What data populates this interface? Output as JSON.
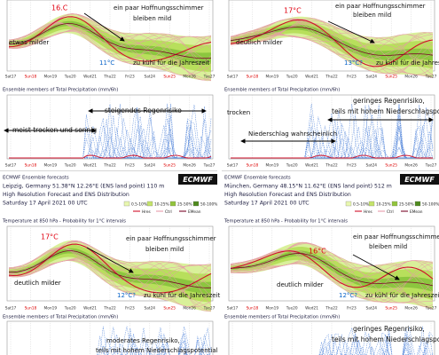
{
  "x_days": [
    "Sat17",
    "Sun18",
    "Mon19",
    "Tue20",
    "Wed21",
    "Thu22",
    "Fri23",
    "Sat24",
    "Sun25",
    "Mon26",
    "Tue27"
  ],
  "precip_title": "Ensemble members of Total Precipitation (mm/6h)",
  "temp_title": "Temperature at 850 hPa - Probability for 1°C intervals",
  "logo": "ECMWF",
  "legend": {
    "bins": [
      "0.5-10%",
      "10-25%",
      "25-50%",
      "50-100%"
    ],
    "lines": [
      "Hres",
      "Ctrl",
      "EMean"
    ]
  },
  "top": [
    {
      "temp": [
        "16.C",
        "ein paar Hoffnungsschimmer",
        "bleiben mild",
        "etwas milder",
        "11°C",
        "zu kühl für die Jahreszeit"
      ],
      "precip": [
        "steigendes Regenrisiko",
        "meist trocken und sonnig"
      ]
    },
    {
      "temp": [
        "17°C",
        "ein paar Hoffnungsschimmer",
        "bleiben mild",
        "deutlich milder",
        "13°C?",
        "zu kühl für die Jahreszeit"
      ],
      "precip": [
        "trocken",
        "geringes Regenrisiko,",
        "teils mit hohem Niederschlagspotential",
        "Niederschlag  wahrscheinlich"
      ]
    }
  ],
  "bottom": [
    {
      "header": [
        "ECMWF Ensemble forecasts",
        "Leipzig, Germany 51.38°N 12.26°E (ENS land point) 110 m",
        "High Resolution Forecast and ENS Distribution",
        "Saturday 17 April 2021 00 UTC"
      ],
      "temp": [
        "17°C",
        "ein paar Hoffnungsschimmer",
        "bleiben mild",
        "deutlich milder",
        "12°C?",
        "zu kühl für die Jahreszeit"
      ],
      "precip": [
        "moderates Regenrisiko,",
        "teils mit hohem Niederschlagspotential"
      ]
    },
    {
      "header": [
        "ECMWF Ensemble forecasts",
        "München, Germany 48.15°N 11.62°E (ENS land point) 512 m",
        "High Resolution Forecast and ENS Distribution",
        "Saturday 17 April 2021 00 UTC"
      ],
      "temp": [
        "16°C",
        "ein paar Hoffnungsschimmer",
        "bleiben mild",
        "deutlich milder",
        "12°C?",
        "zu kühl für die Jahreszeit"
      ],
      "precip": [
        "geringes Regenrisiko,",
        "teils mit hohem Niederschlagspotential"
      ]
    }
  ]
}
